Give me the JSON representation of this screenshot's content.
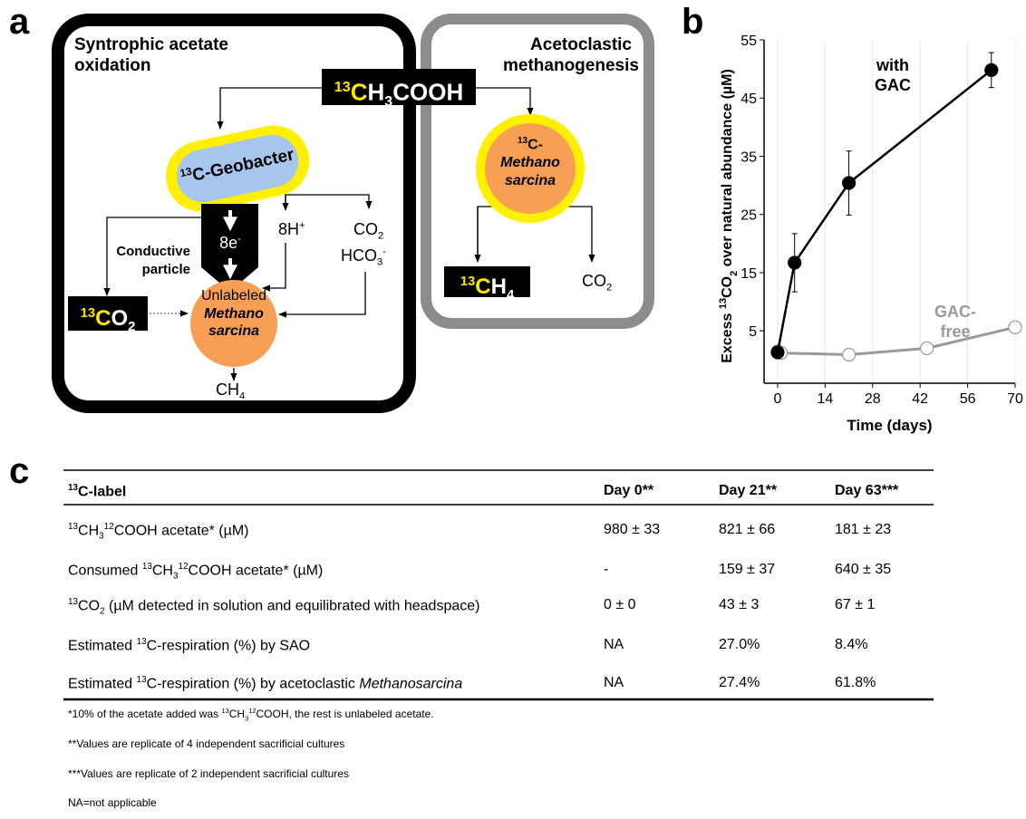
{
  "panel_labels": [
    "a",
    "b",
    "c"
  ],
  "diagram": {
    "left_title": "Syntrophic acetate oxidation",
    "right_title": "Acetoclastic methanogenesis",
    "substrate": [
      "13",
      "C",
      "H",
      "3",
      "COOH"
    ],
    "geobacter": [
      "13",
      "C-Geobacter"
    ],
    "electrons": [
      "8e",
      "-"
    ],
    "conductive_particle": "Conductive particle",
    "protons": [
      "8H",
      "+"
    ],
    "co2": [
      "CO",
      "2"
    ],
    "bicarbonate": [
      "HCO",
      "3",
      "-"
    ],
    "labeled_co2": [
      "13",
      "C",
      "O",
      "2"
    ],
    "unlabeled": "Unlabeled",
    "unlabeled_methanosarcina": [
      "Methano",
      "sarcina"
    ],
    "ch4": [
      "CH",
      "4"
    ],
    "labeled_methanosarcina": [
      "13",
      "C-",
      "Methano",
      "sarcina"
    ],
    "labeled_ch4": [
      "13",
      "C",
      "H",
      "4"
    ],
    "right_co2": [
      "CO",
      "2"
    ]
  },
  "chart_data": {
    "type": "line",
    "x_label": "Time (days)",
    "y_label": [
      "Excess ",
      "13",
      "CO",
      "2",
      " over natural abundance (µM)"
    ],
    "xlim": [
      -4,
      70
    ],
    "xticks": [
      0,
      14,
      28,
      42,
      56,
      70
    ],
    "ylim": [
      -4,
      55
    ],
    "yticks": [
      5,
      15,
      25,
      35,
      45,
      55
    ],
    "grid": "x",
    "series": [
      {
        "name": "with GAC",
        "color": "#000000",
        "marker_fill": "#000000",
        "x": [
          0,
          5,
          21,
          63
        ],
        "values": [
          1.3,
          16.7,
          30.4,
          49.8
        ],
        "errors": [
          0.5,
          5,
          5.5,
          3
        ]
      },
      {
        "name": "GAC-free",
        "color": "#999999",
        "marker_fill": "#ffffff",
        "x": [
          0,
          1,
          21,
          44,
          70
        ],
        "values": [
          1.5,
          1.2,
          0.9,
          2.0,
          5.6
        ]
      }
    ]
  },
  "table": {
    "header": [
      [
        "13",
        "C-label"
      ],
      "Day 0**",
      "Day 21**",
      "Day 63***"
    ],
    "rows": [
      [
        [
          "13",
          "CH",
          "3",
          "12",
          "COOH acetate* (µM)"
        ],
        "980 ± 33",
        "821 ± 66",
        "181 ± 23"
      ],
      [
        [
          "Consumed ",
          "13",
          "CH",
          "3",
          "12",
          "COOH acetate* (µM)"
        ],
        "-",
        "159 ± 37",
        "640 ± 35"
      ],
      [
        [
          "13",
          "CO",
          "2",
          " (µM detected in solution and equilibrated with headspace)"
        ],
        "0 ± 0",
        "43 ± 3",
        "67 ± 1"
      ],
      [
        [
          "Estimated ",
          "13",
          "C-respiration (%) by SAO"
        ],
        "NA",
        "27.0%",
        "8.4%"
      ],
      [
        [
          "Estimated ",
          "13",
          "C-respiration (%) by acetoclastic ",
          "Methanosarcina"
        ],
        "NA",
        "27.4%",
        "61.8%"
      ]
    ]
  },
  "footnotes": [
    [
      "*10% of the acetate added was ",
      "13",
      "CH",
      "3",
      "12",
      "COOH, the rest is unlabeled acetate."
    ],
    "**Values are replicate of 4 independent sacrificial cultures",
    "***Values are replicate of 2 independent sacrificial cultures",
    "NA=not applicable"
  ]
}
